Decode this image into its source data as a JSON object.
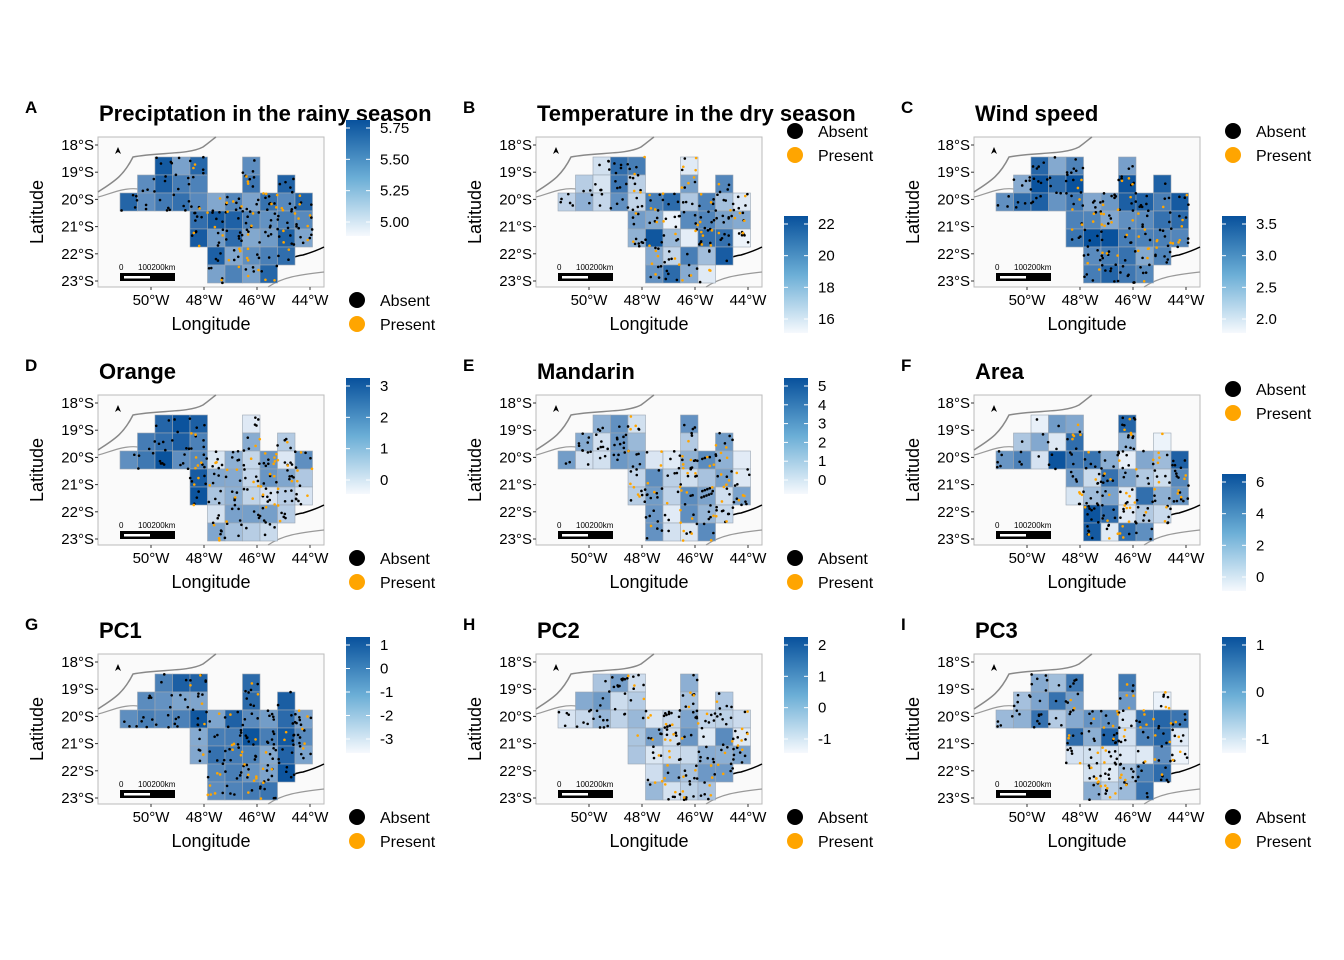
{
  "axis": {
    "xlabel": "Longitude",
    "ylabel": "Latitude",
    "x_ticks": [
      "50°W",
      "48°W",
      "46°W",
      "44°W"
    ],
    "y_ticks": [
      "18°S",
      "19°S",
      "20°S",
      "21°S",
      "22°S",
      "23°S"
    ]
  },
  "legend": {
    "absent": "Absent",
    "present": "Present",
    "absent_color": "#000000",
    "present_color": "#FFA500"
  },
  "scalebar": {
    "zero": "0",
    "label": "100200km"
  },
  "north_arrow": "north-arrow-icon",
  "colors": {
    "fill_low": "#eef4fb",
    "fill_high": "#08519c",
    "panel_bg": "#fafafa",
    "border": "#bbbbbb"
  },
  "panels": [
    {
      "letter": "A",
      "title": "Preciptation in the rainy season",
      "color_ticks": [
        "5.75",
        "5.50",
        "5.25",
        "5.00"
      ],
      "points_legend_position": "bottom"
    },
    {
      "letter": "B",
      "title": "Temperature in the dry season",
      "color_ticks": [
        "22",
        "20",
        "18",
        "16"
      ],
      "points_legend_position": "top"
    },
    {
      "letter": "C",
      "title": "Wind speed",
      "color_ticks": [
        "3.5",
        "3.0",
        "2.5",
        "2.0"
      ],
      "points_legend_position": "top"
    },
    {
      "letter": "D",
      "title": "Orange",
      "color_ticks": [
        "3",
        "2",
        "1",
        "0"
      ],
      "points_legend_position": "bottom"
    },
    {
      "letter": "E",
      "title": "Mandarin",
      "color_ticks": [
        "5",
        "4",
        "3",
        "2",
        "1",
        "0"
      ],
      "points_legend_position": "bottom"
    },
    {
      "letter": "F",
      "title": "Area",
      "color_ticks": [
        "6",
        "4",
        "2",
        "0"
      ],
      "points_legend_position": "top"
    },
    {
      "letter": "G",
      "title": "PC1",
      "color_ticks": [
        "1",
        "0",
        "-1",
        "-2",
        "-3"
      ],
      "points_legend_position": "bottom"
    },
    {
      "letter": "H",
      "title": "PC2",
      "color_ticks": [
        "2",
        "1",
        "0",
        "-1"
      ],
      "points_legend_position": "bottom"
    },
    {
      "letter": "I",
      "title": "PC3",
      "color_ticks": [
        "1",
        "0",
        "-1"
      ],
      "points_legend_position": "bottom"
    }
  ]
}
